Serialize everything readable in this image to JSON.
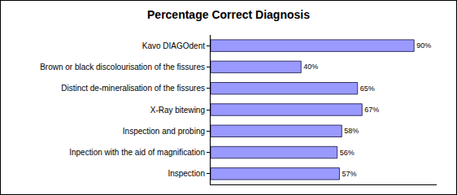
{
  "chart_data": {
    "type": "bar",
    "orientation": "horizontal",
    "title": "Percentage Correct Diagnosis",
    "categories": [
      "Kavo DIAGOdent",
      "Brown or black discolourisation of the fissures",
      "Distinct de-mineralisation of the fissures",
      "X-Ray bitewing",
      "Inspection and probing",
      "Inpection with the aid of magnification",
      "Inspection"
    ],
    "values": [
      90,
      40,
      65,
      67,
      58,
      56,
      57
    ],
    "value_labels": [
      "90%",
      "40%",
      "65%",
      "67%",
      "58%",
      "56%",
      "57%"
    ],
    "data_labels": true,
    "color": "#9999ff",
    "xlim": [
      0,
      100
    ],
    "tick_labels": "y",
    "grid": false
  }
}
